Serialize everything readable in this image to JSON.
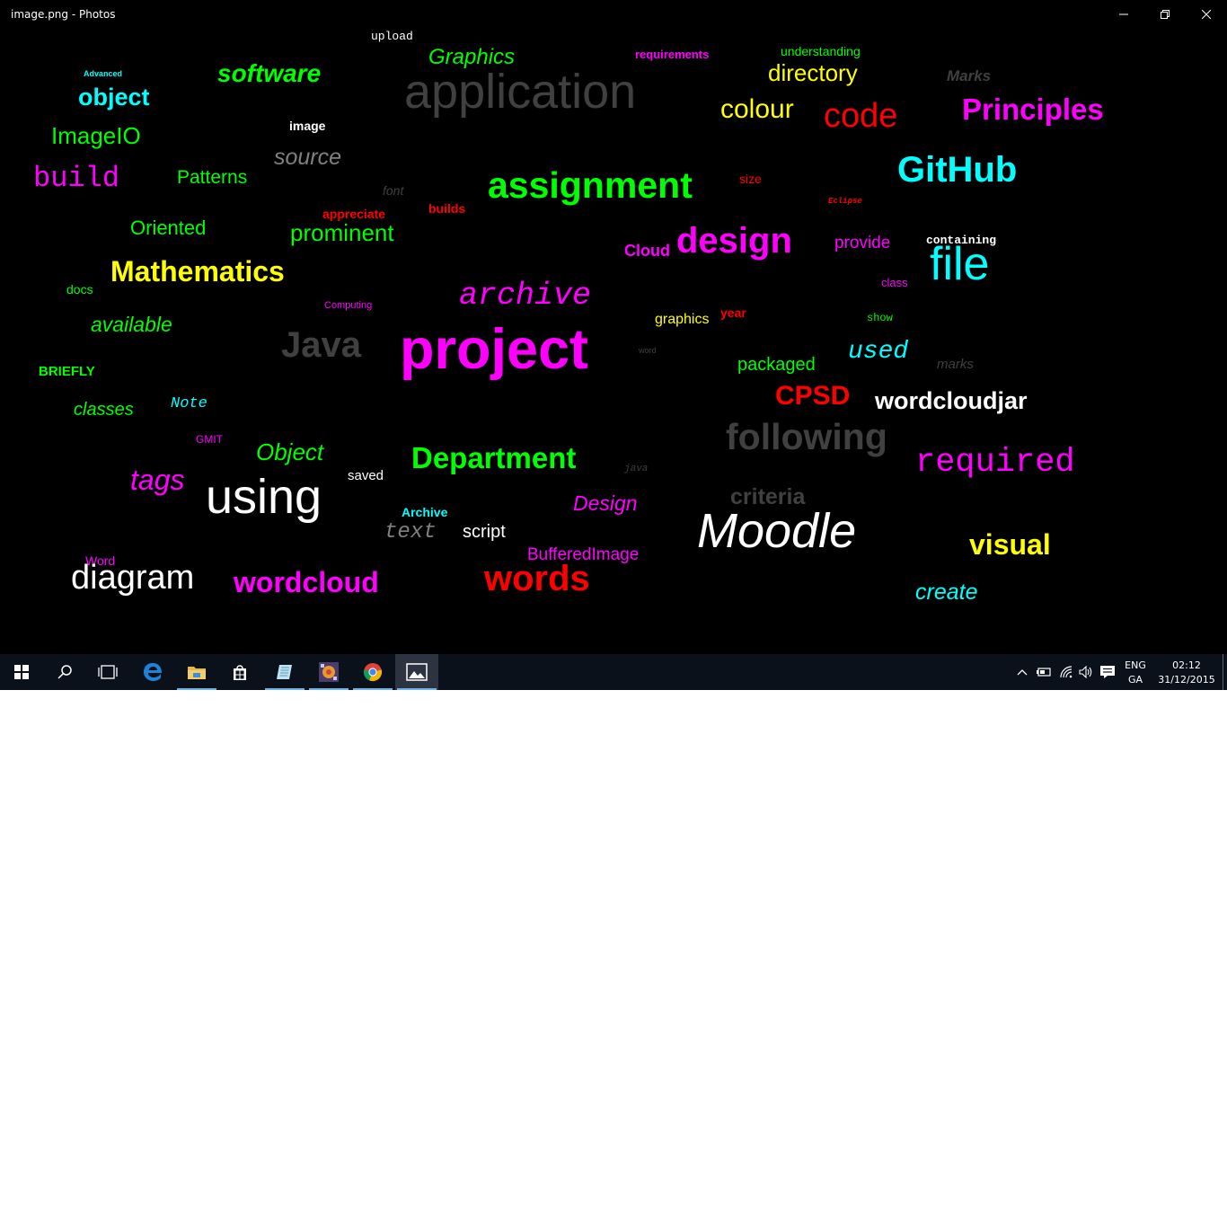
{
  "window": {
    "title": "image.png - Photos",
    "controls": {
      "minimize_icon": "minimize-icon",
      "restore_icon": "restore-icon",
      "close_icon": "close-icon"
    }
  },
  "wordcloud": [
    {
      "text": "upload",
      "color": "#ffffff"
    },
    {
      "text": "Graphics",
      "color": "#00ff00"
    },
    {
      "text": "requirements",
      "color": "#ff00ff"
    },
    {
      "text": "understanding",
      "color": "#00ff00"
    },
    {
      "text": "Advanced",
      "color": "#00ffff"
    },
    {
      "text": "software",
      "color": "#00ff00"
    },
    {
      "text": "application",
      "color": "#404040"
    },
    {
      "text": "directory",
      "color": "#ffff00"
    },
    {
      "text": "Marks",
      "color": "#404040"
    },
    {
      "text": "object",
      "color": "#00ffff"
    },
    {
      "text": "colour",
      "color": "#ffff00"
    },
    {
      "text": "code",
      "color": "#ff0000"
    },
    {
      "text": "Principles",
      "color": "#ff00ff"
    },
    {
      "text": "image",
      "color": "#ffffff"
    },
    {
      "text": "ImageIO",
      "color": "#00ff00"
    },
    {
      "text": "source",
      "color": "#808080"
    },
    {
      "text": "build",
      "color": "#ff00ff"
    },
    {
      "text": "Patterns",
      "color": "#00ff00"
    },
    {
      "text": "assignment",
      "color": "#00ff00"
    },
    {
      "text": "size",
      "color": "#ff0000"
    },
    {
      "text": "GitHub",
      "color": "#00ffff"
    },
    {
      "text": "font",
      "color": "#404040"
    },
    {
      "text": "Eclipse",
      "color": "#ff0000"
    },
    {
      "text": "appreciate",
      "color": "#ff0000"
    },
    {
      "text": "builds",
      "color": "#ff0000"
    },
    {
      "text": "Oriented",
      "color": "#00ff00"
    },
    {
      "text": "prominent",
      "color": "#00ff00"
    },
    {
      "text": "Cloud",
      "color": "#ff00ff"
    },
    {
      "text": "design",
      "color": "#ff00ff"
    },
    {
      "text": "provide",
      "color": "#ff00ff"
    },
    {
      "text": "containing",
      "color": "#ffffff"
    },
    {
      "text": "Mathematics",
      "color": "#ffff00"
    },
    {
      "text": "file",
      "color": "#00ffff"
    },
    {
      "text": "docs",
      "color": "#00ff00"
    },
    {
      "text": "archive",
      "color": "#ff00ff"
    },
    {
      "text": "class",
      "color": "#ff00ff"
    },
    {
      "text": "Computing",
      "color": "#ff00ff"
    },
    {
      "text": "graphics",
      "color": "#ffff00"
    },
    {
      "text": "year",
      "color": "#ff0000"
    },
    {
      "text": "show",
      "color": "#00ff00"
    },
    {
      "text": "available",
      "color": "#00ff00"
    },
    {
      "text": "Java",
      "color": "#404040"
    },
    {
      "text": "project",
      "color": "#ff00ff"
    },
    {
      "text": "word",
      "color": "#404040"
    },
    {
      "text": "used",
      "color": "#00ffff"
    },
    {
      "text": "packaged",
      "color": "#00ff00"
    },
    {
      "text": "marks",
      "color": "#404040"
    },
    {
      "text": "BRIEFLY",
      "color": "#00ff00"
    },
    {
      "text": "CPSD",
      "color": "#ff0000"
    },
    {
      "text": "Note",
      "color": "#00ffff"
    },
    {
      "text": "wordcloudjar",
      "color": "#ffffff"
    },
    {
      "text": "classes",
      "color": "#00ff00"
    },
    {
      "text": "following",
      "color": "#404040"
    },
    {
      "text": "GMIT",
      "color": "#ff00ff"
    },
    {
      "text": "Object",
      "color": "#00ff00"
    },
    {
      "text": "Department",
      "color": "#00ff00"
    },
    {
      "text": "java",
      "color": "#404040"
    },
    {
      "text": "required",
      "color": "#ff00ff"
    },
    {
      "text": "tags",
      "color": "#ff00ff"
    },
    {
      "text": "saved",
      "color": "#ffffff"
    },
    {
      "text": "using",
      "color": "#ffffff"
    },
    {
      "text": "criteria",
      "color": "#404040"
    },
    {
      "text": "Archive",
      "color": "#00ffff"
    },
    {
      "text": "Design",
      "color": "#ff00ff"
    },
    {
      "text": "text",
      "color": "#808080"
    },
    {
      "text": "script",
      "color": "#ffffff"
    },
    {
      "text": "Moodle",
      "color": "#ffffff"
    },
    {
      "text": "visual",
      "color": "#ffff00"
    },
    {
      "text": "BufferedImage",
      "color": "#ff00ff"
    },
    {
      "text": "Word",
      "color": "#ff00ff"
    },
    {
      "text": "diagram",
      "color": "#ffffff"
    },
    {
      "text": "wordcloud",
      "color": "#ff00ff"
    },
    {
      "text": "words",
      "color": "#ff0000"
    },
    {
      "text": "create",
      "color": "#00ffff"
    }
  ],
  "taskbar": {
    "apps": [
      {
        "name": "start-icon"
      },
      {
        "name": "search-icon"
      },
      {
        "name": "task-view-icon"
      },
      {
        "name": "edge-icon"
      },
      {
        "name": "file-explorer-icon"
      },
      {
        "name": "store-icon"
      },
      {
        "name": "notepad-icon"
      },
      {
        "name": "app-icon"
      },
      {
        "name": "chrome-icon"
      },
      {
        "name": "photos-icon"
      }
    ],
    "tray": {
      "icons": [
        "chevron-up-icon",
        "battery-icon",
        "wifi-icon",
        "volume-icon",
        "action-center-icon"
      ],
      "language": {
        "line1": "ENG",
        "line2": "GA"
      },
      "time": "02:12",
      "date": "31/12/2015"
    }
  }
}
